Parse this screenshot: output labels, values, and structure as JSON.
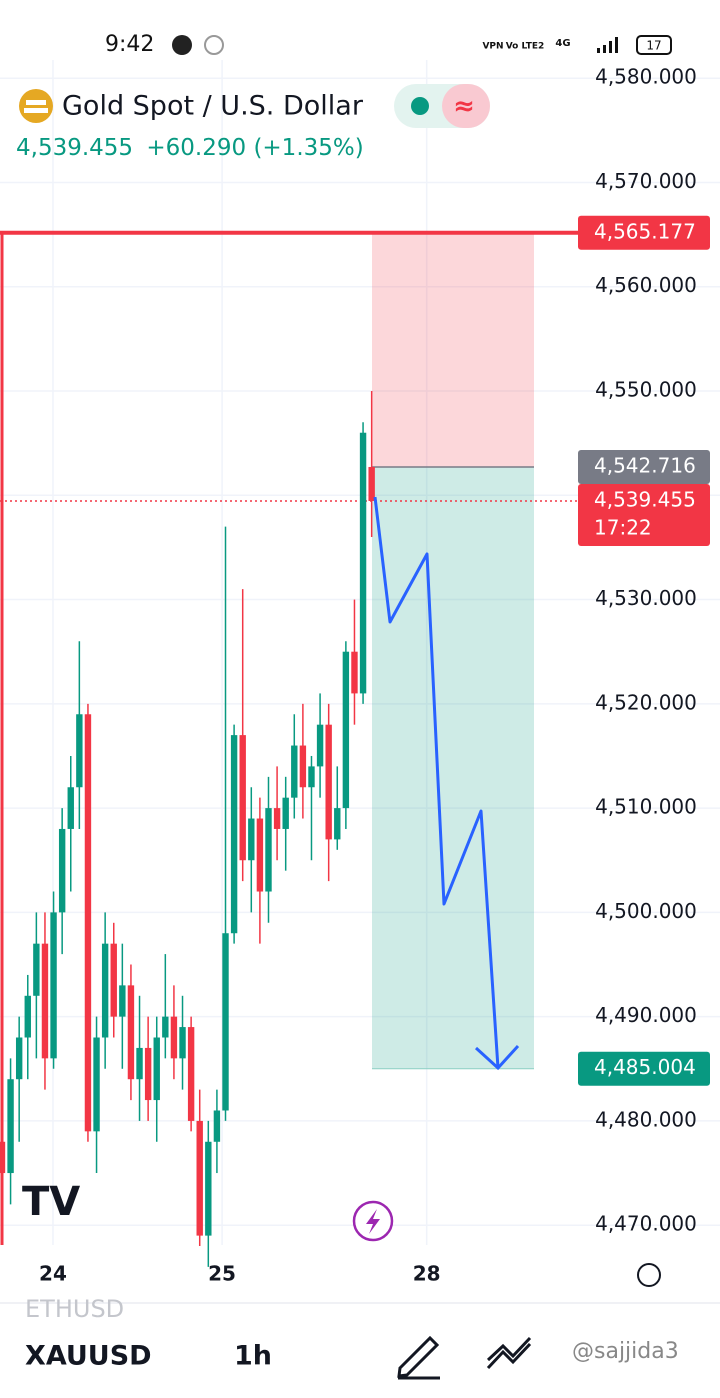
{
  "status_bar": {
    "time": "9:42",
    "vpn": "VPN",
    "network": "Vo LTE2",
    "signal": "4G",
    "battery": "17"
  },
  "header": {
    "title": "Gold Spot / U.S. Dollar",
    "price": "4,539.455",
    "change": "+60.290",
    "change_pct": "(+1.35%)"
  },
  "chart_data": {
    "type": "candlestick",
    "up_color": "#089981",
    "down_color": "#f23645",
    "x": [
      0,
      1,
      2,
      3,
      4,
      5,
      6,
      7,
      8,
      9,
      10,
      11,
      12,
      13,
      14,
      15,
      16,
      17,
      18,
      19,
      20,
      21,
      22,
      23,
      24,
      25,
      26,
      27,
      28,
      29,
      30,
      31,
      32,
      33,
      34,
      35,
      36,
      37,
      38,
      39,
      40,
      41,
      42,
      43
    ],
    "ohlc": [
      [
        4478,
        4482,
        4470,
        4475
      ],
      [
        4475,
        4486,
        4472,
        4484
      ],
      [
        4484,
        4490,
        4478,
        4488
      ],
      [
        4488,
        4494,
        4484,
        4492
      ],
      [
        4492,
        4500,
        4486,
        4497
      ],
      [
        4497,
        4500,
        4483,
        4486
      ],
      [
        4486,
        4502,
        4485,
        4500
      ],
      [
        4500,
        4510,
        4496,
        4508
      ],
      [
        4508,
        4515,
        4502,
        4512
      ],
      [
        4512,
        4526,
        4508,
        4519
      ],
      [
        4519,
        4520,
        4478,
        4479
      ],
      [
        4479,
        4490,
        4475,
        4488
      ],
      [
        4488,
        4500,
        4485,
        4497
      ],
      [
        4497,
        4499,
        4488,
        4490
      ],
      [
        4490,
        4497,
        4485,
        4493
      ],
      [
        4493,
        4495,
        4482,
        4484
      ],
      [
        4484,
        4492,
        4480,
        4487
      ],
      [
        4487,
        4490,
        4480,
        4482
      ],
      [
        4482,
        4490,
        4478,
        4488
      ],
      [
        4488,
        4496,
        4486,
        4490
      ],
      [
        4490,
        4493,
        4484,
        4486
      ],
      [
        4486,
        4492,
        4483,
        4489
      ],
      [
        4489,
        4490,
        4479,
        4480
      ],
      [
        4480,
        4483,
        4468,
        4469
      ],
      [
        4469,
        4480,
        4466,
        4478
      ],
      [
        4478,
        4483,
        4475,
        4481
      ],
      [
        4481,
        4537,
        4480,
        4498
      ],
      [
        4498,
        4518,
        4497,
        4517
      ],
      [
        4517,
        4531,
        4503,
        4505
      ],
      [
        4505,
        4512,
        4500,
        4509
      ],
      [
        4509,
        4511,
        4497,
        4502
      ],
      [
        4502,
        4513,
        4499,
        4510
      ],
      [
        4510,
        4514,
        4505,
        4508
      ],
      [
        4508,
        4513,
        4504,
        4511
      ],
      [
        4511,
        4519,
        4509,
        4516
      ],
      [
        4516,
        4520,
        4509,
        4512
      ],
      [
        4512,
        4515,
        4505,
        4514
      ],
      [
        4514,
        4521,
        4511,
        4518
      ],
      [
        4518,
        4520,
        4503,
        4507
      ],
      [
        4507,
        4514,
        4506,
        4510
      ],
      [
        4510,
        4526,
        4508,
        4525
      ],
      [
        4525,
        4530,
        4518,
        4521
      ],
      [
        4521,
        4547,
        4520,
        4546
      ],
      [
        4542.716,
        4550,
        4536,
        4539.455
      ]
    ],
    "xlim": [
      -0.23,
      67.0
    ],
    "xticks": [
      {
        "value": 5.93,
        "label": "24"
      },
      {
        "value": 25.6,
        "label": "25"
      },
      {
        "value": 49.4,
        "label": "28"
      }
    ],
    "ylim": [
      4468.1,
      4587.5
    ],
    "yticks": [
      {
        "value": 4470,
        "label": "4,470.000"
      },
      {
        "value": 4480,
        "label": "4,480.000"
      },
      {
        "value": 4490,
        "label": "4,490.000"
      },
      {
        "value": 4500,
        "label": "4,500.000"
      },
      {
        "value": 4510,
        "label": "4,510.000"
      },
      {
        "value": 4520,
        "label": "4,520.000"
      },
      {
        "value": 4530,
        "label": "4,530.000"
      },
      {
        "value": 4540,
        "label": "4,540.000"
      },
      {
        "value": 4550,
        "label": "4,550.000"
      },
      {
        "value": 4560,
        "label": "4,560.000"
      },
      {
        "value": 4570,
        "label": "4,570.000"
      },
      {
        "value": 4580,
        "label": "4,580.000"
      }
    ],
    "grid": true,
    "position": {
      "stop": {
        "value": 4565.177,
        "label": "4,565.177"
      },
      "entry": {
        "value": 4542.716,
        "label": "4,542.716"
      },
      "target": {
        "value": 4485.004,
        "label": "4,485.004"
      }
    },
    "last_price": {
      "value": 4539.455,
      "label": "4,539.455",
      "countdown": "17:22"
    }
  },
  "toolbar": {
    "prev_symbol": "ETHUSD",
    "symbol": "XAUUSD",
    "interval": "1h",
    "watermark": "@sajjida3"
  }
}
